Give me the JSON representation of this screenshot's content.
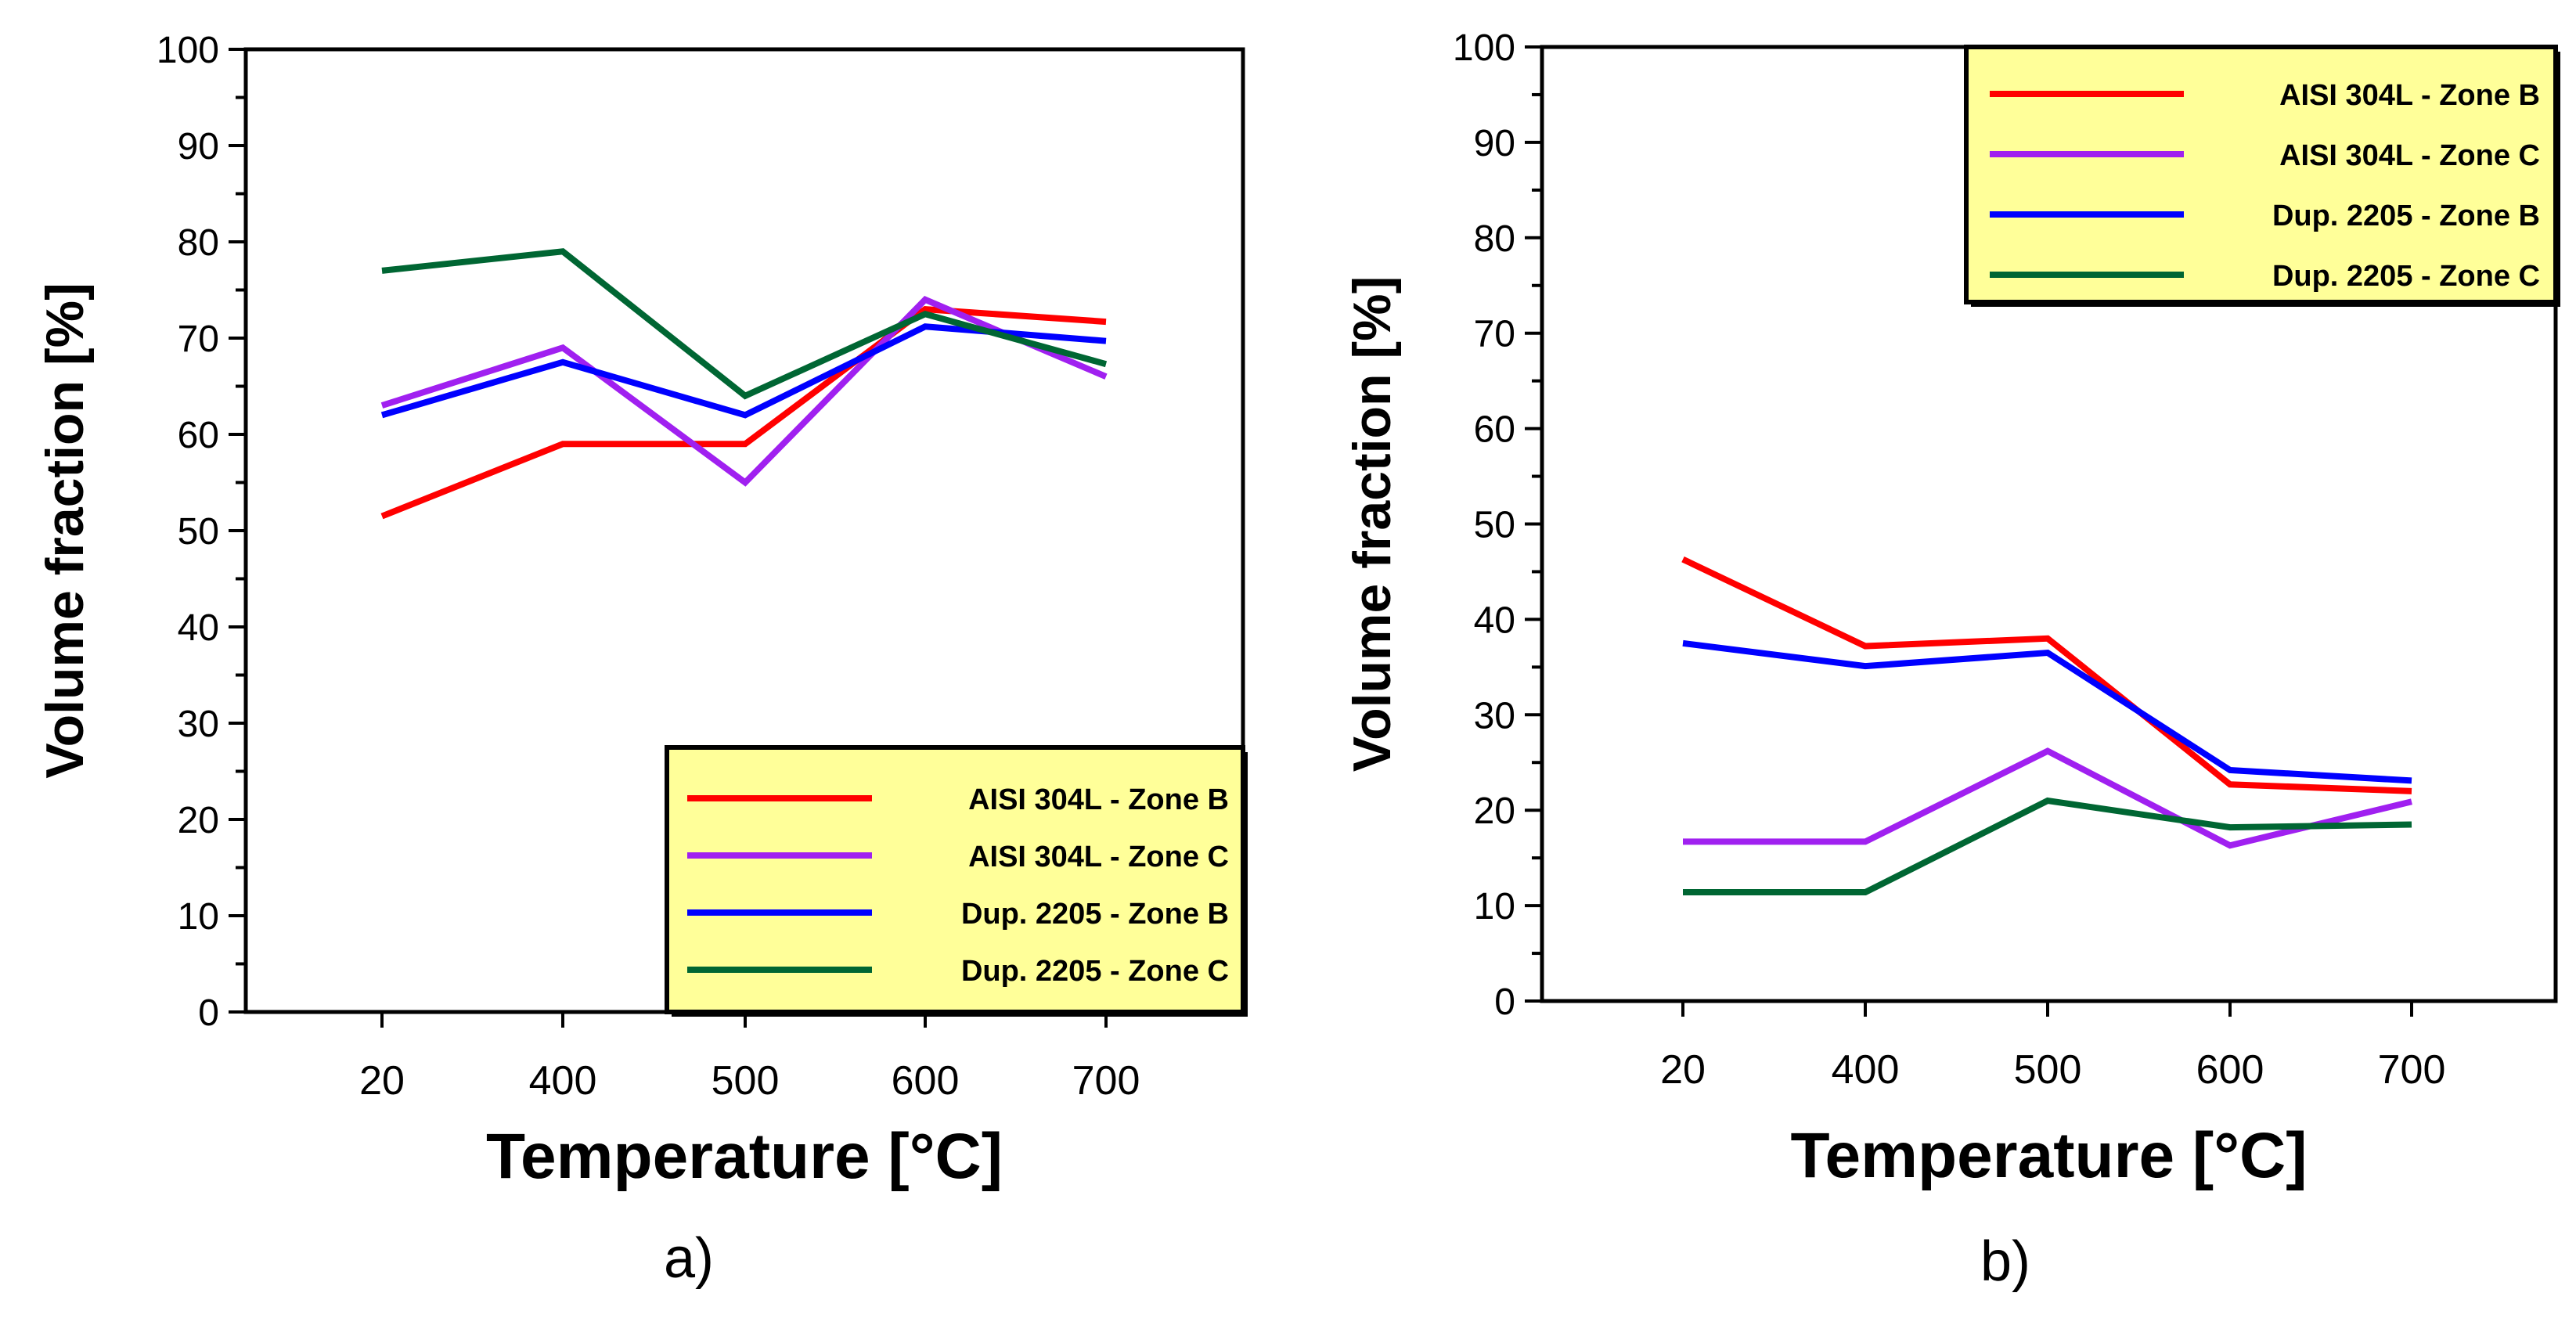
{
  "chart_data": [
    {
      "type": "line",
      "panel_label": "a)",
      "xlabel": "Temperature [°C]",
      "ylabel": "Volume fraction [%]",
      "categories": [
        "20",
        "400",
        "500",
        "600",
        "700"
      ],
      "ylim": [
        0,
        100
      ],
      "yticks": [
        "0",
        "10",
        "20",
        "30",
        "40",
        "50",
        "60",
        "70",
        "80",
        "90",
        "100"
      ],
      "legend_position": "bottom-right",
      "series": [
        {
          "name": "AISI 304L - Zone B",
          "color": "#ff0000",
          "values": [
            51.5,
            59,
            59,
            73,
            71.7
          ]
        },
        {
          "name": "AISI 304L - Zone C",
          "color": "#a020f0",
          "values": [
            63,
            69,
            55,
            74,
            66
          ]
        },
        {
          "name": "Dup. 2205 - Zone B",
          "color": "#0000ff",
          "values": [
            62,
            67.5,
            62,
            71.2,
            69.7
          ]
        },
        {
          "name": "Dup. 2205 - Zone C",
          "color": "#006633",
          "values": [
            77,
            79,
            64,
            72.5,
            67.3
          ]
        }
      ]
    },
    {
      "type": "line",
      "panel_label": "b)",
      "xlabel": "Temperature [°C]",
      "ylabel": "Volume fraction [%]",
      "categories": [
        "20",
        "400",
        "500",
        "600",
        "700"
      ],
      "ylim": [
        0,
        100
      ],
      "yticks": [
        "0",
        "10",
        "20",
        "30",
        "40",
        "50",
        "60",
        "70",
        "80",
        "90",
        "100"
      ],
      "legend_position": "top-right",
      "series": [
        {
          "name": "AISI 304L - Zone B",
          "color": "#ff0000",
          "values": [
            46.3,
            37.2,
            38,
            22.7,
            22
          ]
        },
        {
          "name": "AISI 304L - Zone C",
          "color": "#a020f0",
          "values": [
            16.7,
            16.7,
            26.2,
            16.3,
            20.9
          ]
        },
        {
          "name": "Dup. 2205 - Zone B",
          "color": "#0000ff",
          "values": [
            37.5,
            35.1,
            36.5,
            24.2,
            23.1
          ]
        },
        {
          "name": "Dup. 2205 - Zone C",
          "color": "#006633",
          "values": [
            11.4,
            11.4,
            21,
            18.2,
            18.5
          ]
        }
      ]
    }
  ]
}
